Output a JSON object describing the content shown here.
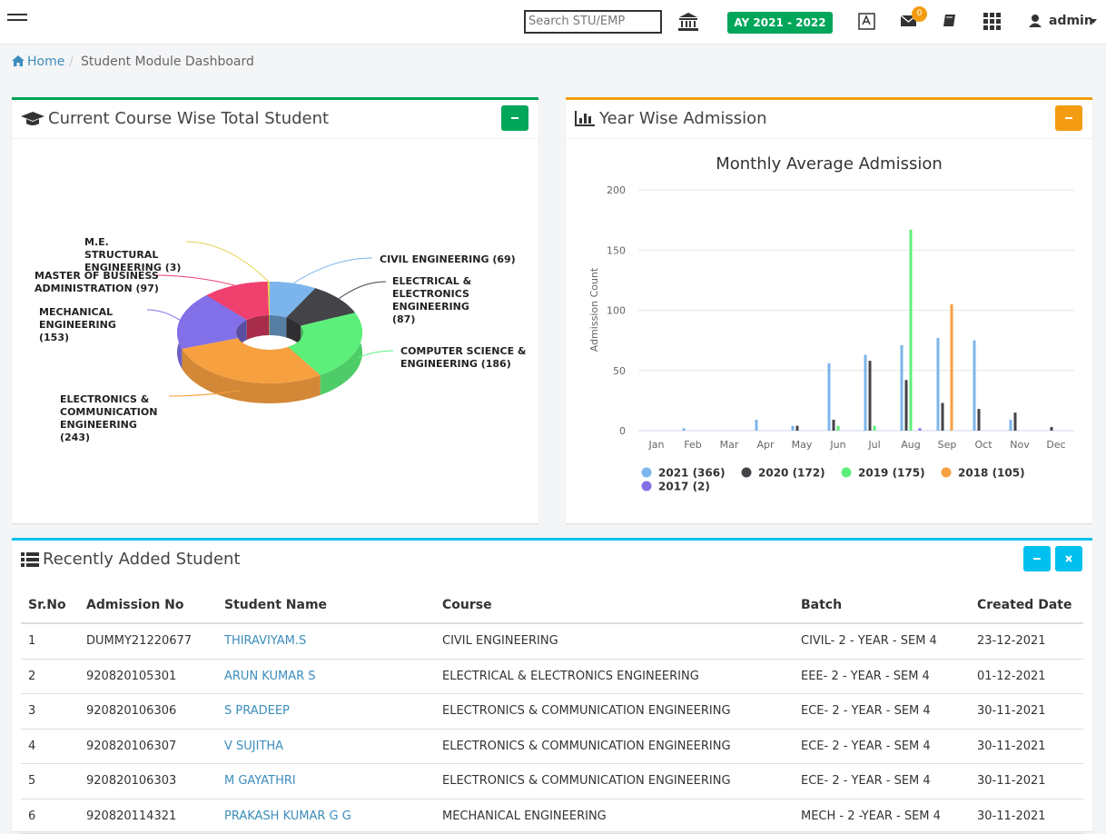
{
  "header": {
    "search_placeholder": "Search STU/EMP",
    "academic_year": "AY 2021 - 2022",
    "mail_badge": "0",
    "user": "admin"
  },
  "breadcrumb": {
    "home": "Home",
    "current": "Student Module Dashboard"
  },
  "panels": {
    "course_title": "Current Course Wise Total Student",
    "admission_title": "Year Wise Admission",
    "table_title": "Recently Added Student"
  },
  "chart_data": [
    {
      "type": "pie",
      "categories": [
        "CIVIL ENGINEERING (69)",
        "ELECTRICAL & ELECTRONICS ENGINEERING (87)",
        "COMPUTER SCIENCE & ENGINEERING (186)",
        "ELECTRONICS & COMMUNICATION ENGINEERING (243)",
        "MECHANICAL ENGINEERING (153)",
        "MASTER OF BUSINESS ADMINISTRATION (97)",
        "M.E. STRUCTURAL ENGINEERING (3)"
      ],
      "values": [
        69,
        87,
        186,
        243,
        153,
        97,
        3
      ],
      "colors": [
        "#7cb5ec",
        "#434348",
        "#5cf07a",
        "#f7a040",
        "#8270e8",
        "#f0406e",
        "#e4d354"
      ]
    },
    {
      "type": "bar",
      "title": "Monthly Average Admission",
      "y_label": "Admission Count",
      "categories": [
        "Jan",
        "Feb",
        "Mar",
        "Apr",
        "May",
        "Jun",
        "Jul",
        "Aug",
        "Sep",
        "Oct",
        "Nov",
        "Dec"
      ],
      "series": [
        {
          "name": "2021 (366)",
          "color": "#7cb5ec",
          "values": [
            0,
            2,
            0,
            9,
            4,
            56,
            63,
            71,
            77,
            75,
            9,
            0
          ]
        },
        {
          "name": "2020 (172)",
          "color": "#434348",
          "values": [
            0,
            0,
            0,
            0,
            4,
            9,
            58,
            42,
            23,
            18,
            15,
            3
          ]
        },
        {
          "name": "2019 (175)",
          "color": "#5cf07a",
          "values": [
            0,
            0,
            0,
            0,
            0,
            4,
            4,
            167,
            0,
            0,
            0,
            0
          ]
        },
        {
          "name": "2018 (105)",
          "color": "#f7a040",
          "values": [
            0,
            0,
            0,
            0,
            0,
            0,
            0,
            0,
            105,
            0,
            0,
            0
          ]
        },
        {
          "name": "2017 (2)",
          "color": "#8270e8",
          "values": [
            0,
            0,
            0,
            0,
            0,
            0,
            0,
            2,
            0,
            0,
            0,
            0
          ]
        }
      ],
      "ylim": [
        0,
        200
      ],
      "yticks": [
        0,
        50,
        100,
        150,
        200
      ],
      "grid": true
    }
  ],
  "table": {
    "headers": [
      "Sr.No",
      "Admission No",
      "Student Name",
      "Course",
      "Batch",
      "Created Date"
    ],
    "rows": [
      [
        "1",
        "DUMMY21220677",
        "THIRAVIYAM.S",
        "CIVIL ENGINEERING",
        "CIVIL- 2 - YEAR - SEM 4",
        "23-12-2021"
      ],
      [
        "2",
        "920820105301",
        "ARUN KUMAR S",
        "ELECTRICAL & ELECTRONICS ENGINEERING",
        "EEE- 2 - YEAR - SEM 4",
        "01-12-2021"
      ],
      [
        "3",
        "920820106306",
        "S PRADEEP",
        "ELECTRONICS & COMMUNICATION ENGINEERING",
        "ECE- 2 - YEAR - SEM 4",
        "30-11-2021"
      ],
      [
        "4",
        "920820106307",
        "V SUJITHA",
        "ELECTRONICS & COMMUNICATION ENGINEERING",
        "ECE- 2 - YEAR - SEM 4",
        "30-11-2021"
      ],
      [
        "5",
        "920820106303",
        "M GAYATHRI",
        "ELECTRONICS & COMMUNICATION ENGINEERING",
        "ECE- 2 - YEAR - SEM 4",
        "30-11-2021"
      ],
      [
        "6",
        "920820114321",
        "PRAKASH KUMAR G G",
        "MECHANICAL ENGINEERING",
        "MECH - 2 -YEAR - SEM 4",
        "30-11-2021"
      ]
    ]
  }
}
